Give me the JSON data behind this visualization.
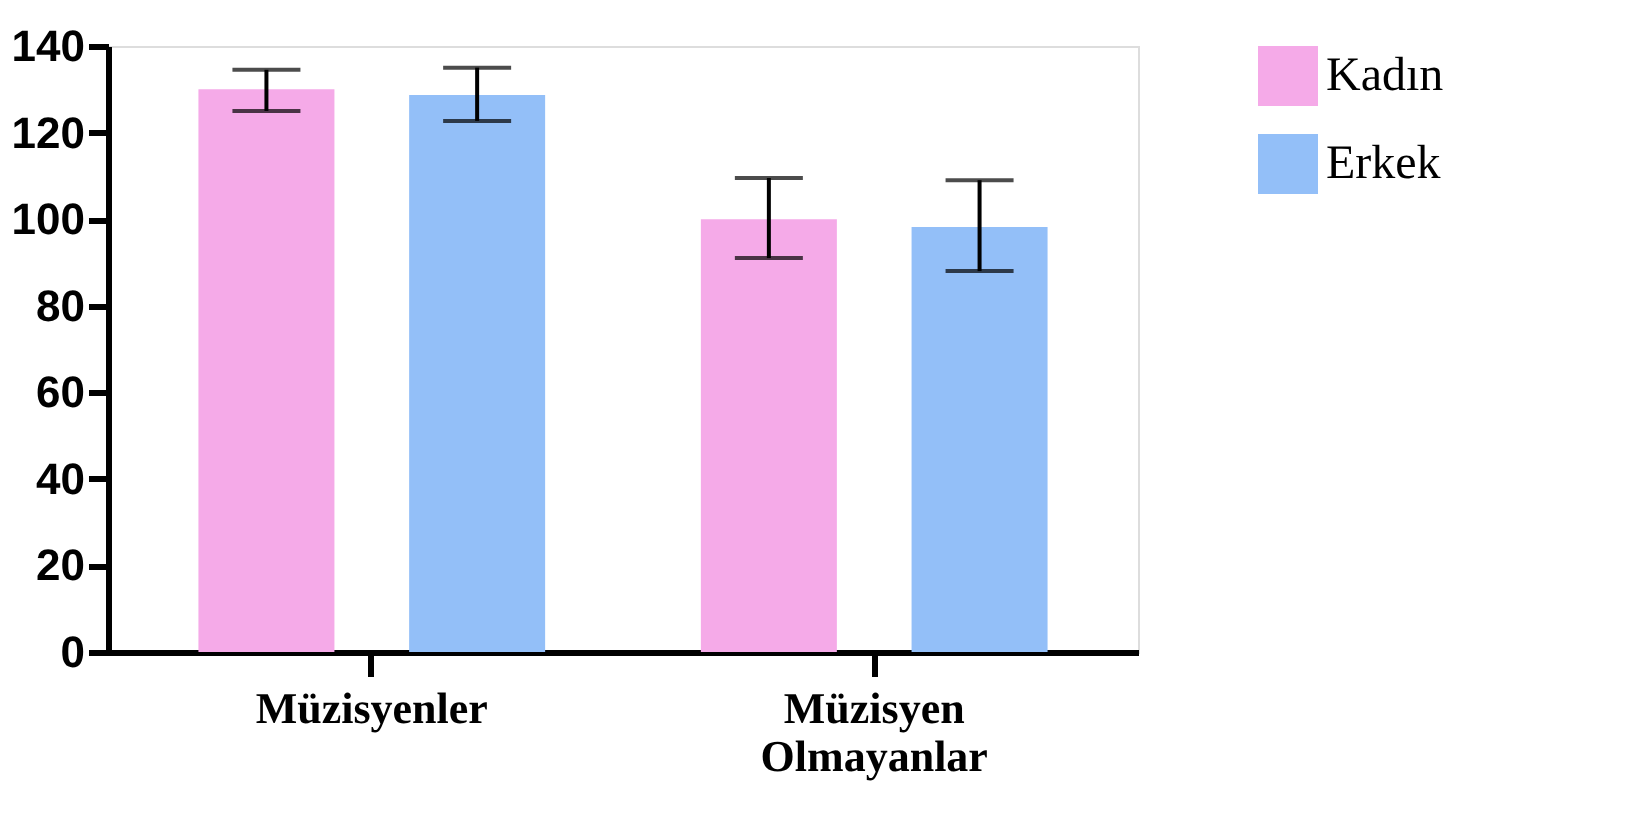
{
  "chart_data": {
    "type": "bar",
    "categories": [
      "Müzisyenler",
      "Müzisyen Olmayanlar"
    ],
    "series": [
      {
        "name": "Kadın",
        "color": "#f5aae8",
        "values": [
          130,
          100
        ],
        "errors": [
          [
            125,
            134.5
          ],
          [
            91,
            109.5
          ]
        ]
      },
      {
        "name": "Erkek",
        "color": "#93bff8",
        "values": [
          128.7,
          98.2
        ],
        "errors": [
          [
            122.7,
            135
          ],
          [
            88,
            109
          ]
        ]
      }
    ],
    "ylim": [
      0,
      140
    ],
    "yticks": [
      0,
      20,
      40,
      60,
      80,
      100,
      120,
      140
    ],
    "grid": false,
    "legend": "top right"
  }
}
